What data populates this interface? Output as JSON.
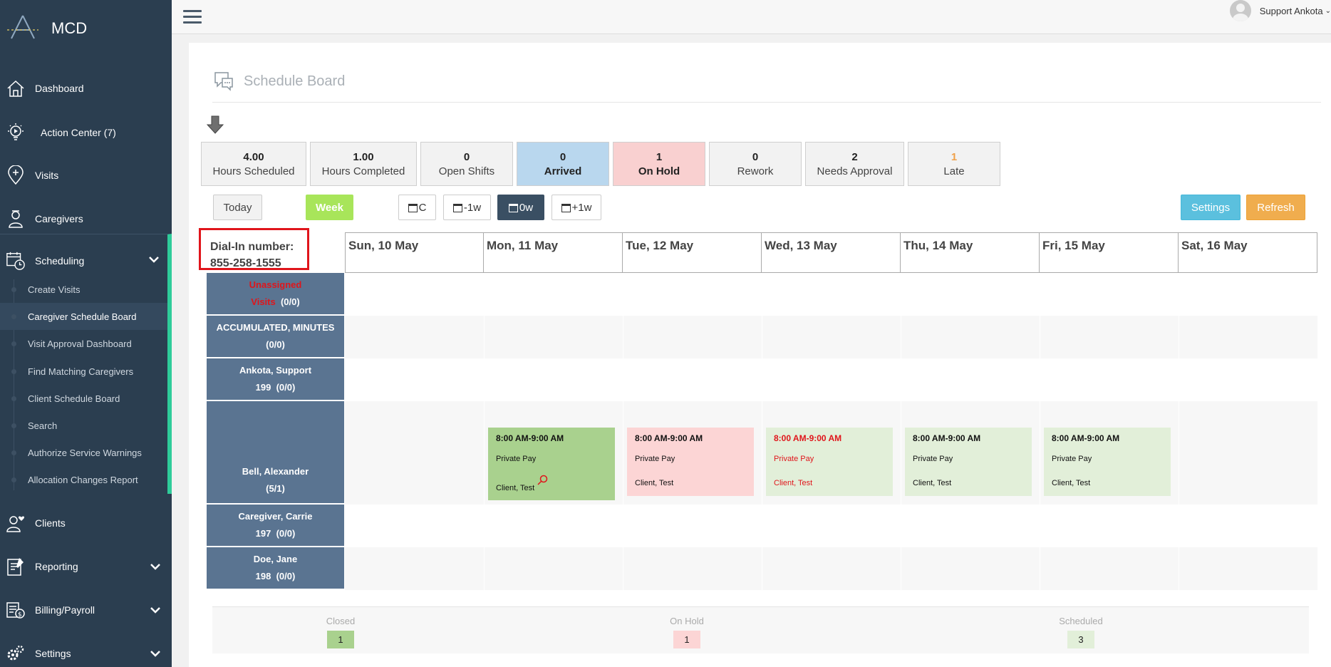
{
  "app": {
    "name": "MCD"
  },
  "sidebar": {
    "items": [
      {
        "label": "Dashboard",
        "icon": "home-icon"
      },
      {
        "label": "Action Center (7)",
        "icon": "lightbulb-play-icon"
      },
      {
        "label": "Visits",
        "icon": "map-pin-plus-icon"
      },
      {
        "label": "Caregivers",
        "icon": "caregiver-icon"
      },
      {
        "label": "Scheduling",
        "icon": "calendar-clock-icon"
      },
      {
        "label": "Clients",
        "icon": "client-heart-icon"
      },
      {
        "label": "Reporting",
        "icon": "report-icon"
      },
      {
        "label": "Billing/Payroll",
        "icon": "billing-icon"
      },
      {
        "label": "Settings",
        "icon": "gears-icon"
      }
    ],
    "scheduling_sub": [
      "Create Visits",
      "Caregiver Schedule Board",
      "Visit Approval Dashboard",
      "Find Matching Caregivers",
      "Client Schedule Board",
      "Search",
      "Authorize Service Warnings",
      "Allocation Changes Report"
    ]
  },
  "topbar": {
    "user_name": "Support Ankota"
  },
  "page": {
    "title": "Schedule Board"
  },
  "stats": [
    {
      "value": "4.00",
      "label": "Hours Scheduled"
    },
    {
      "value": "1.00",
      "label": "Hours Completed"
    },
    {
      "value": "0",
      "label": "Open Shifts"
    },
    {
      "value": "0",
      "label": "Arrived"
    },
    {
      "value": "1",
      "label": "On Hold"
    },
    {
      "value": "0",
      "label": "Rework"
    },
    {
      "value": "2",
      "label": "Needs Approval"
    },
    {
      "value": "1",
      "label": "Late"
    }
  ],
  "toolbar": {
    "today": "Today",
    "week": "Week",
    "cal_current": "C",
    "cal_prev": "-1w",
    "cal_zero": "0w",
    "cal_next": "+1w",
    "settings": "Settings",
    "refresh": "Refresh"
  },
  "grid": {
    "dial_in_label": "Dial-In number:",
    "dial_in_number": "855-258-1555",
    "days": [
      "Sun, 10 May",
      "Mon, 11 May",
      "Tue, 12 May",
      "Wed, 13 May",
      "Thu, 14 May",
      "Fri, 15 May",
      "Sat, 16 May"
    ],
    "rows": [
      {
        "line1": "Unassigned",
        "line2a": "Visits",
        "line2b": "(0/0)"
      },
      {
        "line1": "ACCUMULATED, MINUTES",
        "line2": "(0/0)"
      },
      {
        "line1": "Ankota, Support",
        "line2": "199  (0/0)"
      },
      {
        "line1": "Bell, Alexander",
        "line2": "(5/1)"
      },
      {
        "line1": "Caregiver, Carrie",
        "line2": "197  (0/0)"
      },
      {
        "line1": "Doe, Jane",
        "line2": "198  (0/0)"
      }
    ],
    "visits": [
      {
        "time": "8:00 AM-9:00 AM",
        "payer": "Private Pay",
        "client": "Client, Test"
      },
      {
        "time": "8:00 AM-9:00 AM",
        "payer": "Private Pay",
        "client": "Client, Test"
      },
      {
        "time": "8:00 AM-9:00 AM",
        "payer": "Private Pay",
        "client": "Client, Test"
      },
      {
        "time": "8:00 AM-9:00 AM",
        "payer": "Private Pay",
        "client": "Client, Test"
      },
      {
        "time": "8:00 AM-9:00 AM",
        "payer": "Private Pay",
        "client": "Client, Test"
      }
    ]
  },
  "legend": [
    {
      "label": "Closed",
      "count": "1",
      "color": "#a9d18e"
    },
    {
      "label": "On Hold",
      "count": "1",
      "color": "#fcd5d5"
    },
    {
      "label": "Scheduled",
      "count": "3",
      "color": "#e2efd9"
    }
  ]
}
